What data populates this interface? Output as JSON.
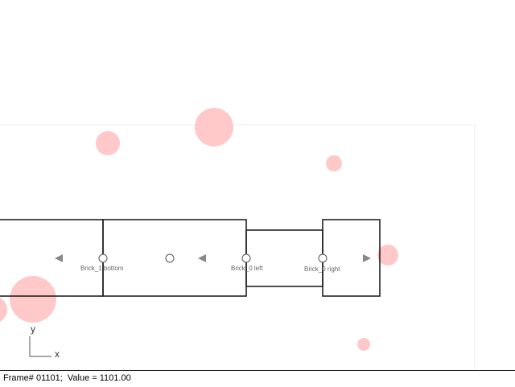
{
  "canvas": {
    "background": "#ffffff",
    "panel_border": "#eeeeee",
    "bubble_color": "#ffc9c9"
  },
  "labels": {
    "brick_1_bottom": "Brick_1 bottom",
    "brick_0_left": "Brick_0 left",
    "brick_0_right": "Brick_0 right"
  },
  "axis": {
    "y": "y",
    "x": "x"
  },
  "status": {
    "text": "Frame# 01101;  Value = 1101.00"
  }
}
